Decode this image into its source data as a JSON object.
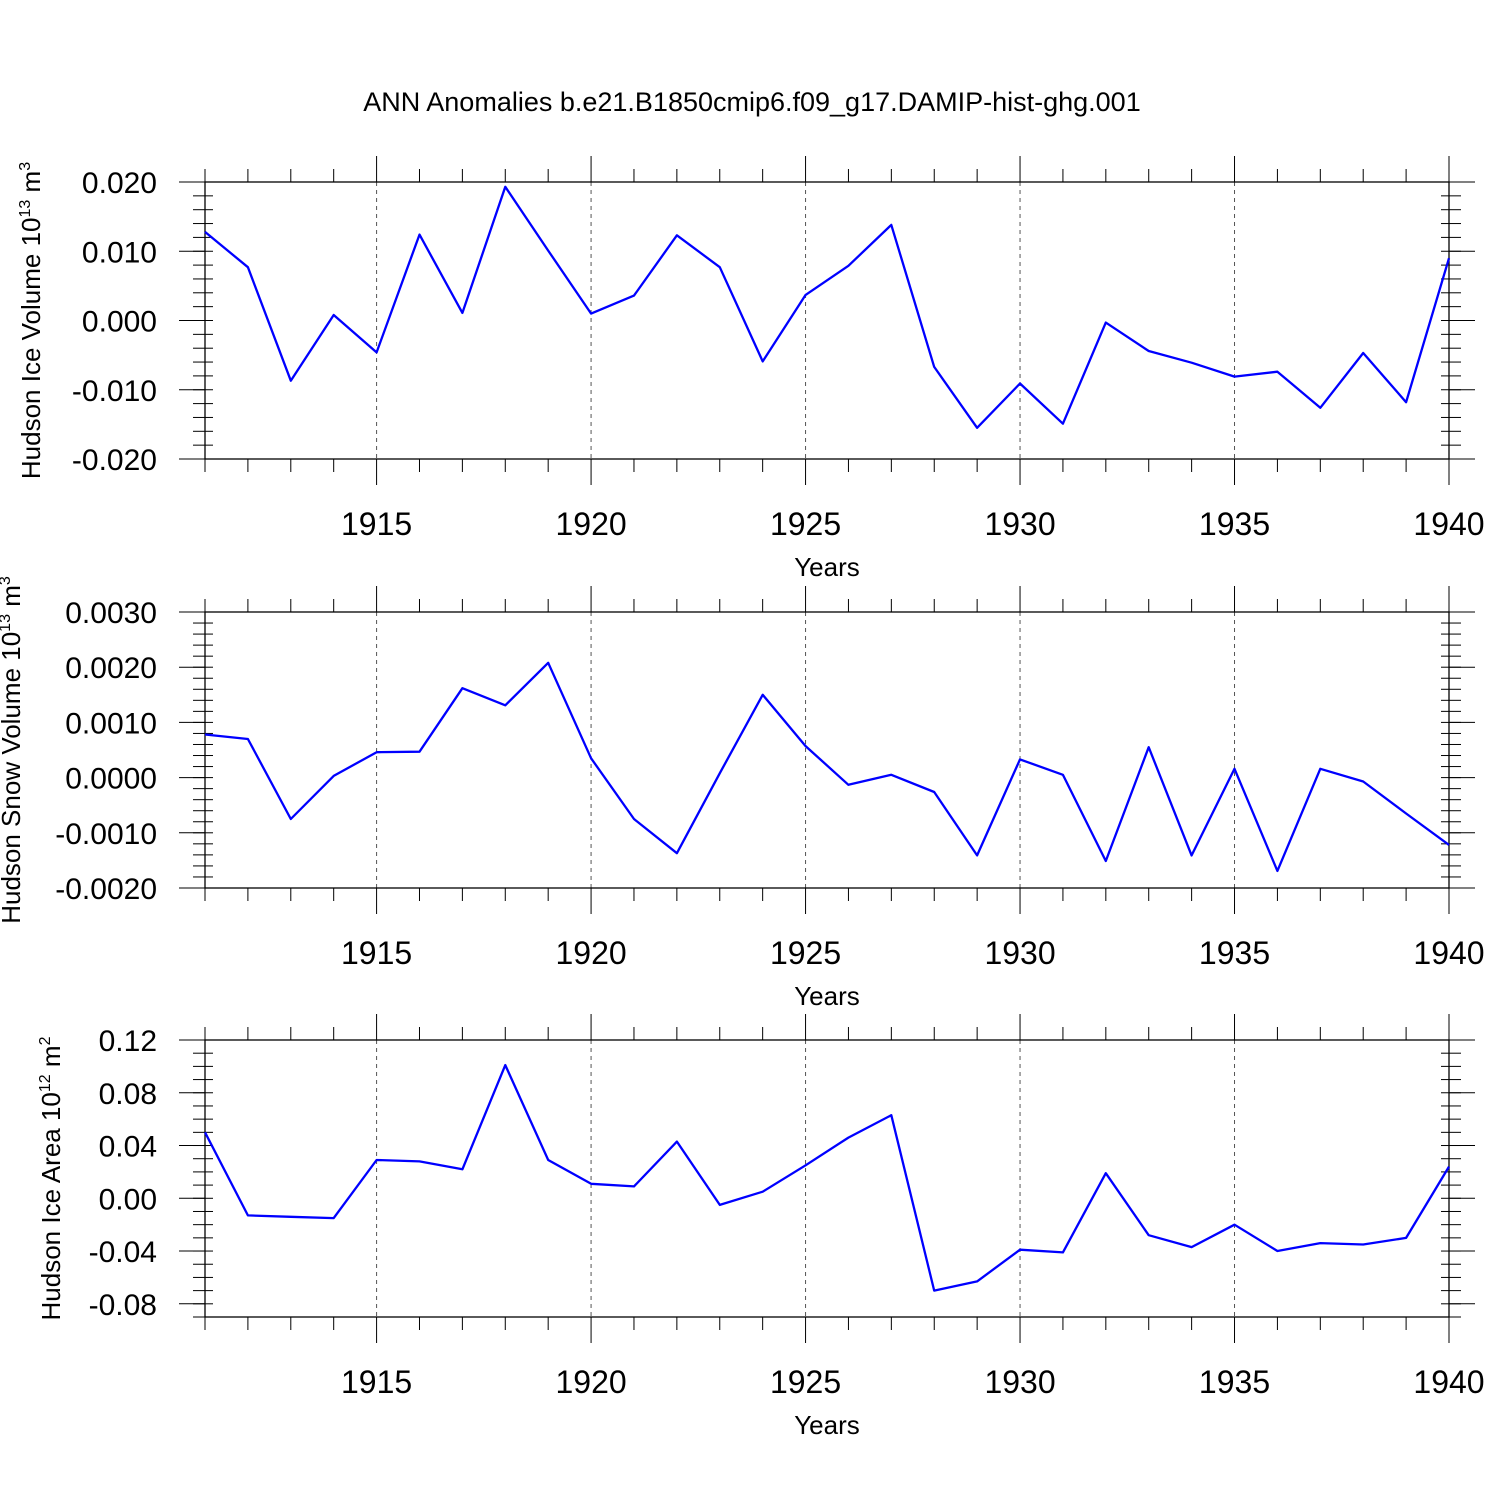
{
  "title": "ANN Anomalies b.e21.B1850cmip6.f09_g17.DAMIP-hist-ghg.001",
  "chart_data": [
    {
      "type": "line",
      "ylabel": {
        "text": "Hudson Ice Volume 10",
        "exp": "13",
        "unit": " m",
        "unit_exp": "3"
      },
      "xlabel": "Years",
      "xlim": [
        1911,
        1940
      ],
      "ylim": [
        -0.02,
        0.02
      ],
      "xticks": [
        1915,
        1920,
        1925,
        1930,
        1935,
        1940
      ],
      "yticks": [
        0.02,
        0.01,
        0.0,
        -0.01,
        -0.02
      ],
      "ytick_labels": [
        "0.020",
        "0.010",
        "0.000",
        "-0.010",
        "-0.020"
      ],
      "ytick_minor_step": 0.002,
      "x": [
        1911,
        1912,
        1913,
        1914,
        1915,
        1916,
        1917,
        1918,
        1919,
        1920,
        1921,
        1922,
        1923,
        1924,
        1925,
        1926,
        1927,
        1928,
        1929,
        1930,
        1931,
        1932,
        1933,
        1934,
        1935,
        1936,
        1937,
        1938,
        1939,
        1940
      ],
      "values": [
        0.0128,
        0.0077,
        -0.0087,
        0.0008,
        -0.0046,
        0.0124,
        0.0011,
        0.0193,
        0.0101,
        0.001,
        0.0036,
        0.0123,
        0.0077,
        -0.0059,
        0.0037,
        0.0079,
        0.0138,
        -0.0067,
        -0.0155,
        -0.0091,
        -0.0149,
        -0.0003,
        -0.0044,
        -0.0061,
        -0.0081,
        -0.0074,
        -0.0126,
        -0.0047,
        -0.0118,
        0.009
      ]
    },
    {
      "type": "line",
      "ylabel": {
        "text": "Hudson Snow Volume 10",
        "exp": "13",
        "unit": " m",
        "unit_exp": "3"
      },
      "xlabel": "Years",
      "xlim": [
        1911,
        1940
      ],
      "ylim": [
        -0.002,
        0.003
      ],
      "xticks": [
        1915,
        1920,
        1925,
        1930,
        1935,
        1940
      ],
      "yticks": [
        0.003,
        0.002,
        0.001,
        0.0,
        -0.001,
        -0.002
      ],
      "ytick_labels": [
        "0.0030",
        "0.0020",
        "0.0010",
        "0.0000",
        "-0.0010",
        "-0.0020"
      ],
      "ytick_minor_step": 0.0002,
      "x": [
        1911,
        1912,
        1913,
        1914,
        1915,
        1916,
        1917,
        1918,
        1919,
        1920,
        1921,
        1922,
        1923,
        1924,
        1925,
        1926,
        1927,
        1928,
        1929,
        1930,
        1931,
        1932,
        1933,
        1934,
        1935,
        1936,
        1937,
        1938,
        1939,
        1940
      ],
      "values": [
        0.00078,
        0.0007,
        -0.00075,
        3e-05,
        0.00046,
        0.00047,
        0.00162,
        0.00131,
        0.00208,
        0.00035,
        -0.00075,
        -0.00137,
        8e-05,
        0.0015,
        0.00057,
        -0.00013,
        5e-05,
        -0.00026,
        -0.00141,
        0.00033,
        5e-05,
        -0.00151,
        0.00055,
        -0.00141,
        0.00016,
        -0.00169,
        0.00016,
        -7e-05,
        -0.00065,
        -0.00122
      ]
    },
    {
      "type": "line",
      "ylabel": {
        "text": "Hudson Ice Area 10",
        "exp": "12",
        "unit": " m",
        "unit_exp": "2"
      },
      "xlabel": "Years",
      "xlim": [
        1911,
        1940
      ],
      "ylim": [
        -0.09,
        0.12
      ],
      "xticks": [
        1915,
        1920,
        1925,
        1930,
        1935,
        1940
      ],
      "yticks": [
        0.12,
        0.08,
        0.04,
        0.0,
        -0.04,
        -0.08
      ],
      "ytick_labels": [
        "0.12",
        "0.08",
        "0.04",
        "0.00",
        "-0.04",
        "-0.08"
      ],
      "ytick_minor_step": 0.01,
      "x": [
        1911,
        1912,
        1913,
        1914,
        1915,
        1916,
        1917,
        1918,
        1919,
        1920,
        1921,
        1922,
        1923,
        1924,
        1925,
        1926,
        1927,
        1928,
        1929,
        1930,
        1931,
        1932,
        1933,
        1934,
        1935,
        1936,
        1937,
        1938,
        1939,
        1940
      ],
      "values": [
        0.05,
        -0.013,
        -0.014,
        -0.015,
        0.029,
        0.028,
        0.022,
        0.101,
        0.029,
        0.011,
        0.009,
        0.043,
        -0.005,
        0.005,
        0.025,
        0.046,
        0.063,
        -0.07,
        -0.063,
        -0.039,
        -0.041,
        0.019,
        -0.028,
        -0.037,
        -0.02,
        -0.04,
        -0.034,
        -0.035,
        -0.03,
        0.024
      ]
    }
  ]
}
